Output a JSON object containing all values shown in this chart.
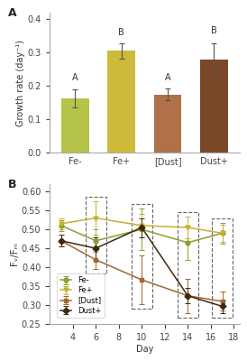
{
  "bar_categories": [
    "Fe-",
    "Fe+",
    "[Dust]",
    "Dust+"
  ],
  "bar_values": [
    0.163,
    0.305,
    0.175,
    0.28
  ],
  "bar_errors": [
    0.028,
    0.022,
    0.018,
    0.048
  ],
  "bar_colors": [
    "#b5c34a",
    "#cdb93a",
    "#b07048",
    "#7a4828"
  ],
  "bar_letters": [
    "A",
    "B",
    "A",
    "B"
  ],
  "bar_ylim": [
    0.0,
    0.42
  ],
  "bar_yticks": [
    0.0,
    0.1,
    0.2,
    0.3,
    0.4
  ],
  "bar_ylabel": "Growth rate (day⁻¹)",
  "line_days": [
    3,
    6,
    10,
    14,
    17
  ],
  "line_Fe_minus": [
    0.51,
    0.47,
    0.5,
    0.465,
    0.49
  ],
  "line_Fe_plus": [
    0.515,
    0.53,
    0.51,
    0.505,
    0.49
  ],
  "line_Dust": [
    0.47,
    0.42,
    0.367,
    0.325,
    0.31
  ],
  "line_Dust_plus": [
    0.47,
    0.45,
    0.505,
    0.325,
    0.297
  ],
  "line_Fe_minus_err": [
    0.015,
    0.03,
    0.055,
    0.045,
    0.028
  ],
  "line_Fe_plus_err": [
    0.015,
    0.045,
    0.03,
    0.028,
    0.022
  ],
  "line_Dust_err": [
    0.015,
    0.025,
    0.065,
    0.045,
    0.025
  ],
  "line_Dust_plus_err": [
    0.015,
    0.03,
    0.025,
    0.02,
    0.018
  ],
  "line_ylim": [
    0.25,
    0.62
  ],
  "line_yticks": [
    0.25,
    0.3,
    0.35,
    0.4,
    0.45,
    0.5,
    0.55,
    0.6
  ],
  "line_ylabel": "Fᵥ/Fₘ",
  "line_xlabel": "Day",
  "line_xticks": [
    4,
    6,
    8,
    10,
    12,
    14,
    16,
    18
  ],
  "colors": {
    "Fe-": "#8a9e30",
    "Fe+": "#c8b030",
    "Dust": "#a06830",
    "Dust+": "#3c2810"
  },
  "background": "#ffffff",
  "key_days": [
    6,
    10,
    14,
    17
  ]
}
